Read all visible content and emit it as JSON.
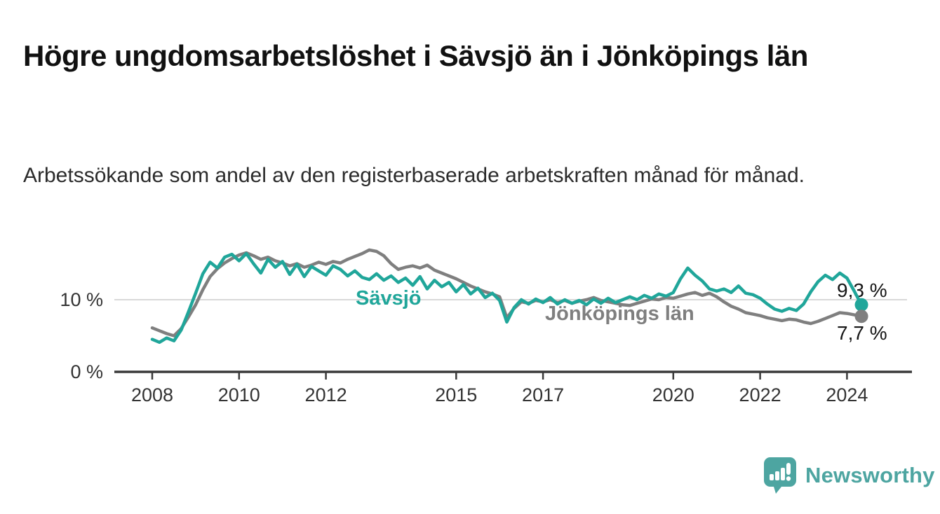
{
  "title": "Högre ungdomsarbetslöshet i Sävsjö än i Jönköpings län",
  "subtitle": "Arbetssökande som andel av den registerbaserade arbetskraften månad för månad.",
  "branding": {
    "logo_text": "Newsworthy",
    "logo_color": "#4da5a1"
  },
  "colors": {
    "savsjo": "#20a69a",
    "jonkoping": "#7f7f7f",
    "gridline": "#d9d9d9",
    "axis": "#3a3a3a",
    "tick_text": "#333333",
    "value_text": "#151515"
  },
  "chart_data": {
    "type": "line",
    "title": "Högre ungdomsarbetslöshet i Sävsjö än i Jönköpings län",
    "subtitle": "Arbetssökande som andel av den registerbaserade arbetskraften månad för månad.",
    "x_unit": "year (bimonthly samples)",
    "x_start": 2008.0,
    "x_step_years": 0.166667,
    "x_ticks": [
      2008,
      2010,
      2012,
      2015,
      2017,
      2020,
      2022,
      2024
    ],
    "y_ticks": [
      {
        "value": 0,
        "label": "0 %"
      },
      {
        "value": 10,
        "label": "10 %"
      }
    ],
    "ylim": [
      0,
      18.5
    ],
    "grid": "single horizontal gridline at 10 %",
    "legend_position": "inline labels on lines",
    "series": [
      {
        "name": "Sävsjö",
        "end_label": "9,3 %",
        "end_value": 9.3,
        "values": [
          4.5,
          4.1,
          4.7,
          4.3,
          5.8,
          8.3,
          10.9,
          13.6,
          15.2,
          14.4,
          15.9,
          16.3,
          15.4,
          16.4,
          15.0,
          13.7,
          15.6,
          14.5,
          15.3,
          13.5,
          14.9,
          13.2,
          14.6,
          14.0,
          13.4,
          14.7,
          14.2,
          13.3,
          14.0,
          13.1,
          12.8,
          13.6,
          12.7,
          13.3,
          12.4,
          13.0,
          12.0,
          13.2,
          11.5,
          12.7,
          11.8,
          12.4,
          11.1,
          12.1,
          10.8,
          11.6,
          10.3,
          10.9,
          9.9,
          6.9,
          8.9,
          10.0,
          9.4,
          10.1,
          9.6,
          10.3,
          9.4,
          10.0,
          9.5,
          9.9,
          9.3,
          10.1,
          9.5,
          10.2,
          9.6,
          10.0,
          10.4,
          10.0,
          10.6,
          10.2,
          10.8,
          10.5,
          11.0,
          12.9,
          14.4,
          13.4,
          12.6,
          11.5,
          11.2,
          11.5,
          11.0,
          11.9,
          10.9,
          10.7,
          10.2,
          9.4,
          8.7,
          8.4,
          8.8,
          8.5,
          9.4,
          11.1,
          12.5,
          13.4,
          12.8,
          13.7,
          13.0,
          11.2,
          9.3
        ]
      },
      {
        "name": "Jönköpings län",
        "end_label": "7,7 %",
        "end_value": 7.7,
        "values": [
          6.1,
          5.7,
          5.3,
          5.0,
          6.0,
          7.6,
          9.3,
          11.4,
          13.2,
          14.3,
          15.1,
          15.7,
          16.2,
          16.5,
          16.1,
          15.6,
          15.9,
          15.4,
          15.1,
          14.7,
          15.0,
          14.5,
          14.8,
          15.2,
          14.9,
          15.3,
          15.1,
          15.6,
          16.0,
          16.4,
          16.9,
          16.7,
          16.1,
          15.0,
          14.2,
          14.5,
          14.7,
          14.4,
          14.8,
          14.1,
          13.7,
          13.3,
          12.9,
          12.4,
          11.9,
          11.5,
          11.1,
          10.8,
          10.4,
          7.5,
          8.8,
          9.7,
          9.5,
          9.9,
          9.7,
          10.0,
          9.6,
          9.9,
          9.5,
          9.8,
          10.0,
          10.3,
          9.9,
          9.7,
          9.5,
          9.3,
          9.2,
          9.5,
          9.8,
          10.1,
          10.0,
          10.3,
          10.2,
          10.5,
          10.8,
          11.0,
          10.6,
          10.9,
          10.4,
          9.7,
          9.1,
          8.7,
          8.2,
          8.0,
          7.8,
          7.5,
          7.3,
          7.1,
          7.3,
          7.2,
          6.9,
          6.7,
          7.0,
          7.4,
          7.8,
          8.2,
          8.1,
          7.9,
          7.7
        ]
      }
    ]
  }
}
